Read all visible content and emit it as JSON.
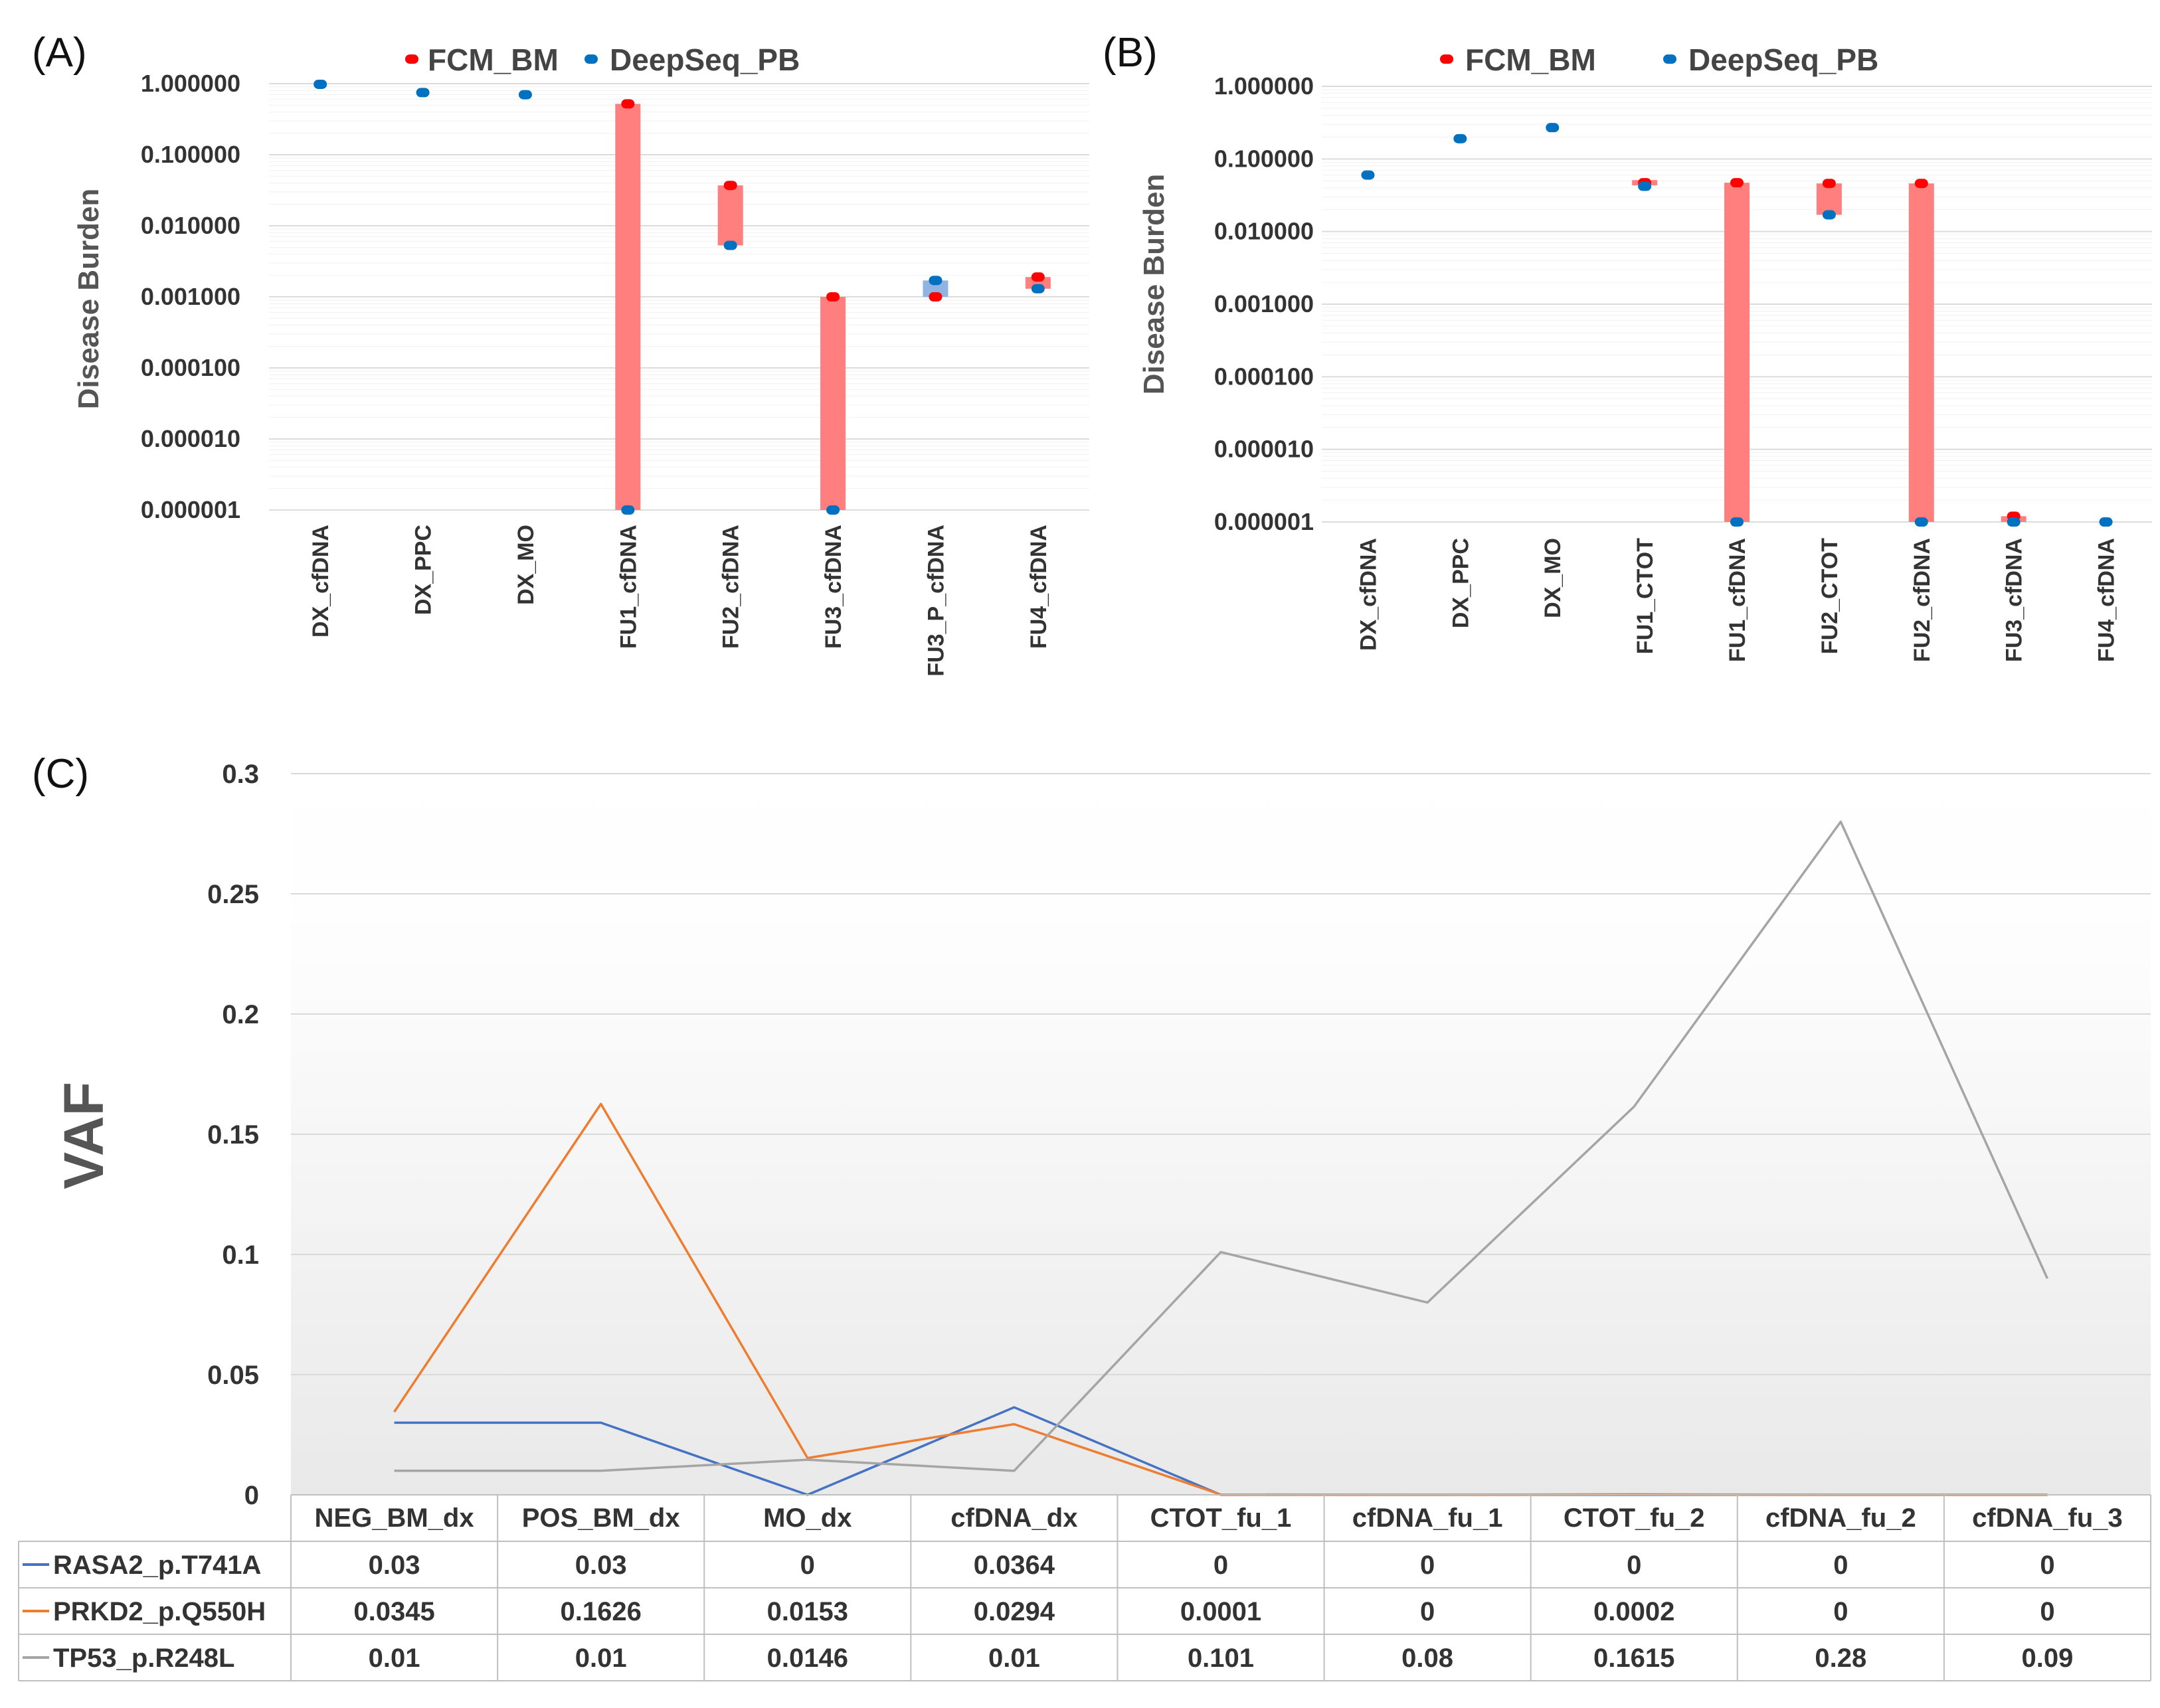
{
  "chart_data": [
    {
      "panel": "(A)",
      "type": "scatter",
      "scale": "log",
      "ylabel": "Disease Burden",
      "yticks": [
        "1.000000",
        "0.100000",
        "0.010000",
        "0.001000",
        "0.000100",
        "0.000010",
        "0.000001"
      ],
      "ylim": [
        1e-06,
        1
      ],
      "categories": [
        "DX_cfDNA",
        "DX_PPC",
        "DX_MO",
        "FU1_cfDNA",
        "FU2_cfDNA",
        "FU3_cfDNA",
        "FU3_P_cfDNA",
        "FU4_cfDNA"
      ],
      "series": [
        {
          "name": "FCM_BM",
          "color": "#ff0000",
          "values": [
            null,
            null,
            null,
            0.52,
            0.037,
            0.001,
            0.001,
            0.0019
          ]
        },
        {
          "name": "DeepSeq_PB",
          "color": "#0070c0",
          "values": [
            0.98,
            0.75,
            0.7,
            1e-06,
            0.0053,
            1e-06,
            0.0017,
            0.0013
          ]
        }
      ]
    },
    {
      "panel": "(B)",
      "type": "scatter",
      "scale": "log",
      "ylabel": "Disease Burden",
      "yticks": [
        "1.000000",
        "0.100000",
        "0.010000",
        "0.001000",
        "0.000100",
        "0.000010",
        "0.000001"
      ],
      "ylim": [
        1e-06,
        1
      ],
      "categories": [
        "DX_cfDNA",
        "DX_PPC",
        "DX_MO",
        "FU1_CTOT",
        "FU1_cfDNA",
        "FU2_CTOT",
        "FU2_cfDNA",
        "FU3_cfDNA",
        "FU4_cfDNA"
      ],
      "series": [
        {
          "name": "FCM_BM",
          "color": "#ff0000",
          "values": [
            null,
            null,
            null,
            0.047,
            0.047,
            0.046,
            0.046,
            1.2e-06,
            null
          ]
        },
        {
          "name": "DeepSeq_PB",
          "color": "#0070c0",
          "values": [
            0.06,
            0.19,
            0.27,
            0.042,
            1e-06,
            0.017,
            1e-06,
            1e-06,
            1e-06
          ]
        }
      ]
    },
    {
      "panel": "(C)",
      "type": "line",
      "ylabel": "VAF",
      "ylim": [
        0,
        0.3
      ],
      "yticks": [
        "0",
        "0.05",
        "0.1",
        "0.15",
        "0.2",
        "0.25",
        "0.3"
      ],
      "categories": [
        "NEG_BM_dx",
        "POS_BM_dx",
        "MO_dx",
        "cfDNA_dx",
        "CTOT_fu_1",
        "cfDNA_fu_1",
        "CTOT_fu_2",
        "cfDNA_fu_2",
        "cfDNA_fu_3"
      ],
      "series": [
        {
          "name": "RASA2_p.T741A",
          "color": "#4472c4",
          "values": [
            0.03,
            0.03,
            0,
            0.0364,
            0,
            0,
            0,
            0,
            0
          ]
        },
        {
          "name": "PRKD2_p.Q550H",
          "color": "#ed7d31",
          "values": [
            0.0345,
            0.1626,
            0.0153,
            0.0294,
            0.0001,
            0,
            0.0002,
            0,
            0
          ]
        },
        {
          "name": "TP53_p.R248L",
          "color": "#a5a5a5",
          "values": [
            0.01,
            0.01,
            0.0146,
            0.01,
            0.101,
            0.08,
            0.1615,
            0.28,
            0.09
          ]
        }
      ],
      "table": [
        [
          "0.03",
          "0.03",
          "0",
          "0.0364",
          "0",
          "0",
          "0",
          "0",
          "0"
        ],
        [
          "0.0345",
          "0.1626",
          "0.0153",
          "0.0294",
          "0.0001",
          "0",
          "0.0002",
          "0",
          "0"
        ],
        [
          "0.01",
          "0.01",
          "0.0146",
          "0.01",
          "0.101",
          "0.08",
          "0.1615",
          "0.28",
          "0.09"
        ]
      ]
    }
  ]
}
